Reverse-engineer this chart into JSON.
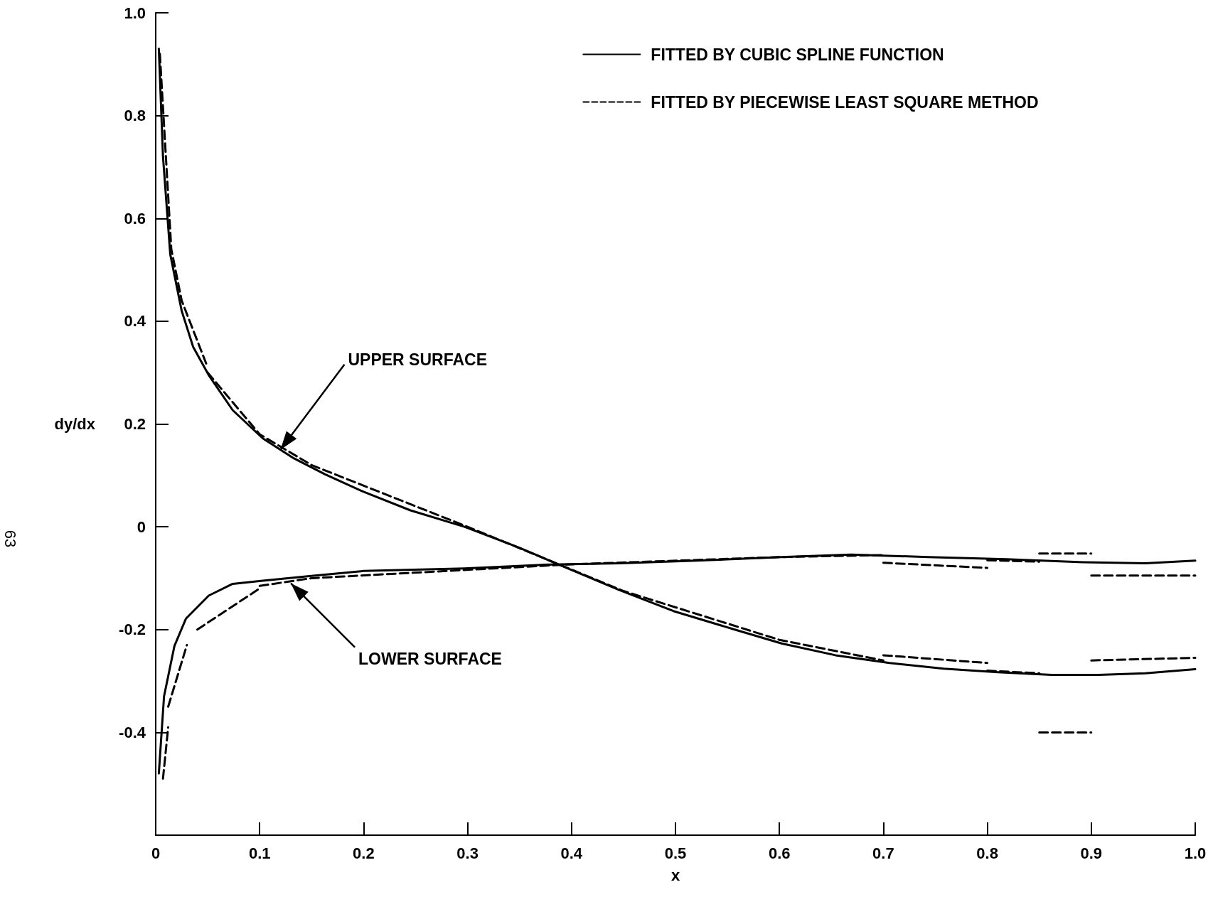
{
  "chart_data": {
    "type": "line",
    "xlabel": "x",
    "ylabel": "dy/dx",
    "xlim": [
      0,
      1
    ],
    "ylim": [
      -0.6,
      1
    ],
    "xticks": [
      0,
      0.1,
      0.2,
      0.3,
      0.4,
      0.5,
      0.6,
      0.7,
      0.8,
      0.9,
      {
        "value": 1,
        "label": "1.0"
      }
    ],
    "yticks": [
      -0.4,
      -0.2,
      0,
      0.2,
      0.4,
      0.6,
      0.8,
      {
        "value": 1,
        "label": "1.0"
      }
    ],
    "legend": "top right",
    "marker": "none",
    "annotations": [
      {
        "text": "UPPER SURFACE",
        "x": 0.12,
        "y": 0.15
      },
      {
        "text": "LOWER SURFACE",
        "x": 0.13,
        "y": -0.11
      },
      "63"
    ],
    "series": [
      {
        "name": "FITTED BY CUBIC SPLINE FUNCTION",
        "color": "#000000",
        "line_style": "solid",
        "x": [
          0.003,
          0.007,
          0.014,
          0.025,
          0.036,
          0.051,
          0.074,
          0.103,
          0.133,
          0.163,
          0.2,
          0.245,
          0.297,
          0.349,
          0.4,
          0.446,
          0.498,
          0.557,
          0.602,
          0.654,
          0.706,
          0.758,
          0.81,
          0.862,
          0.907,
          0.952,
          1.0
        ],
        "values": [
          0.93,
          0.72,
          0.53,
          0.42,
          0.35,
          0.295,
          0.227,
          0.172,
          0.133,
          0.102,
          0.068,
          0.032,
          0.0,
          -0.04,
          -0.084,
          -0.123,
          -0.164,
          -0.2,
          -0.227,
          -0.25,
          -0.265,
          -0.276,
          -0.283,
          -0.288,
          -0.288,
          -0.285,
          -0.277
        ]
      },
      {
        "color": "#000000",
        "line_style": "solid",
        "x": [
          0.003,
          0.008,
          0.018,
          0.029,
          0.051,
          0.074,
          0.103,
          0.148,
          0.2,
          0.297,
          0.371,
          0.446,
          0.52,
          0.602,
          0.669,
          0.743,
          0.818,
          0.892,
          0.952,
          1.0
        ],
        "values": [
          -0.48,
          -0.33,
          -0.232,
          -0.179,
          -0.134,
          -0.111,
          -0.105,
          -0.096,
          -0.086,
          -0.081,
          -0.074,
          -0.071,
          -0.066,
          -0.059,
          -0.054,
          -0.059,
          -0.063,
          -0.069,
          -0.071,
          -0.066
        ]
      },
      {
        "name": "FITTED BY PIECEWISE LEAST SQUARE METHOD",
        "color": "#000000",
        "line_style": "dashed",
        "x": [
          0.004,
          0.015,
          0.025,
          0.05
        ],
        "values": [
          0.92,
          0.54,
          0.44,
          0.31
        ]
      },
      {
        "color": "#000000",
        "line_style": "dashed",
        "x": [
          0.05,
          0.1,
          0.15,
          0.3,
          0.45,
          0.6,
          0.7
        ],
        "values": [
          0.3,
          0.18,
          0.12,
          0.0,
          -0.125,
          -0.22,
          -0.26
        ]
      },
      {
        "color": "#000000",
        "line_style": "dashed",
        "x": [
          0.7,
          0.8
        ],
        "values": [
          -0.25,
          -0.265
        ]
      },
      {
        "color": "#000000",
        "line_style": "dashed",
        "x": [
          0.8,
          0.85
        ],
        "values": [
          -0.28,
          -0.285
        ]
      },
      {
        "color": "#000000",
        "line_style": "dashed",
        "x": [
          0.85,
          0.9
        ],
        "values": [
          -0.4,
          -0.4
        ]
      },
      {
        "color": "#000000",
        "line_style": "dashed",
        "x": [
          0.9,
          1.0
        ],
        "values": [
          -0.26,
          -0.255
        ]
      },
      {
        "color": "#000000",
        "line_style": "dashed",
        "x": [
          0.007,
          0.012
        ],
        "values": [
          -0.49,
          -0.39
        ]
      },
      {
        "color": "#000000",
        "line_style": "dashed",
        "x": [
          0.012,
          0.03
        ],
        "values": [
          -0.35,
          -0.23
        ]
      },
      {
        "color": "#000000",
        "line_style": "dashed",
        "x": [
          0.04,
          0.1
        ],
        "values": [
          -0.2,
          -0.12
        ]
      },
      {
        "color": "#000000",
        "line_style": "dashed",
        "x": [
          0.1,
          0.15,
          0.4,
          0.6,
          0.7
        ],
        "values": [
          -0.115,
          -0.1,
          -0.073,
          -0.059,
          -0.055
        ]
      },
      {
        "color": "#000000",
        "line_style": "dashed",
        "x": [
          0.7,
          0.8
        ],
        "values": [
          -0.07,
          -0.08
        ]
      },
      {
        "color": "#000000",
        "line_style": "dashed",
        "x": [
          0.8,
          0.85
        ],
        "values": [
          -0.065,
          -0.068
        ]
      },
      {
        "color": "#000000",
        "line_style": "dashed",
        "x": [
          0.85,
          0.9
        ],
        "values": [
          -0.052,
          -0.052
        ]
      },
      {
        "color": "#000000",
        "line_style": "dashed",
        "x": [
          0.9,
          1.0
        ],
        "values": [
          -0.095,
          -0.095
        ]
      }
    ]
  }
}
